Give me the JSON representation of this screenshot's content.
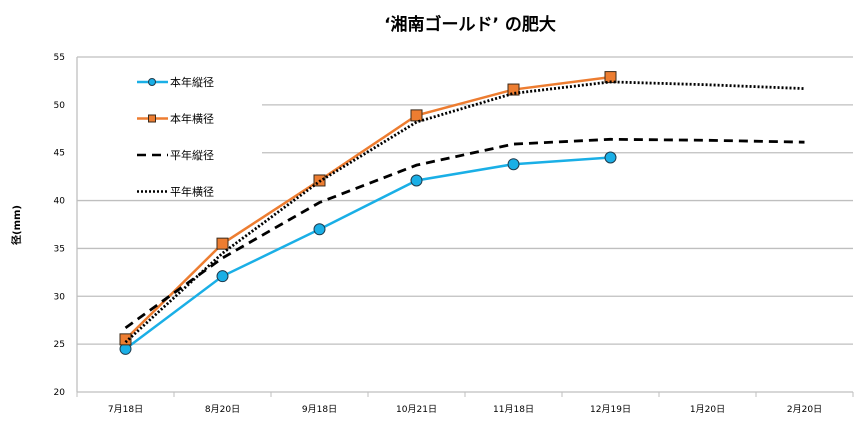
{
  "chart_data": {
    "type": "line",
    "title": "‘湘南ゴールド’ の肥大",
    "xlabel": "",
    "ylabel": "径(mm)",
    "ylim": [
      20,
      55
    ],
    "yticks": [
      20,
      25,
      30,
      35,
      40,
      45,
      50,
      55
    ],
    "grid": true,
    "legend_placement": "top-left",
    "categories": [
      "7月18日",
      "8月20日",
      "9月18日",
      "10月21日",
      "11月18日",
      "12月19日",
      "1月20日",
      "2月20日"
    ],
    "series": [
      {
        "name": "本年縦径",
        "color": "#1AAFE6",
        "style": "solid",
        "marker": "circle",
        "values": [
          24.5,
          32.1,
          37.0,
          42.1,
          43.8,
          44.5,
          null,
          null
        ]
      },
      {
        "name": "本年横径",
        "color": "#ED7D31",
        "style": "solid",
        "marker": "square",
        "values": [
          25.5,
          35.5,
          42.1,
          48.9,
          51.6,
          52.9,
          null,
          null
        ]
      },
      {
        "name": "平年縦径",
        "color": "#000000",
        "style": "dashed",
        "marker": "none",
        "values": [
          26.7,
          34.0,
          39.8,
          43.7,
          45.9,
          46.4,
          46.3,
          46.1
        ]
      },
      {
        "name": "平年横径",
        "color": "#000000",
        "style": "dotted",
        "marker": "none",
        "values": [
          25.2,
          34.5,
          42.0,
          48.2,
          51.2,
          52.4,
          52.1,
          51.7
        ]
      }
    ]
  }
}
